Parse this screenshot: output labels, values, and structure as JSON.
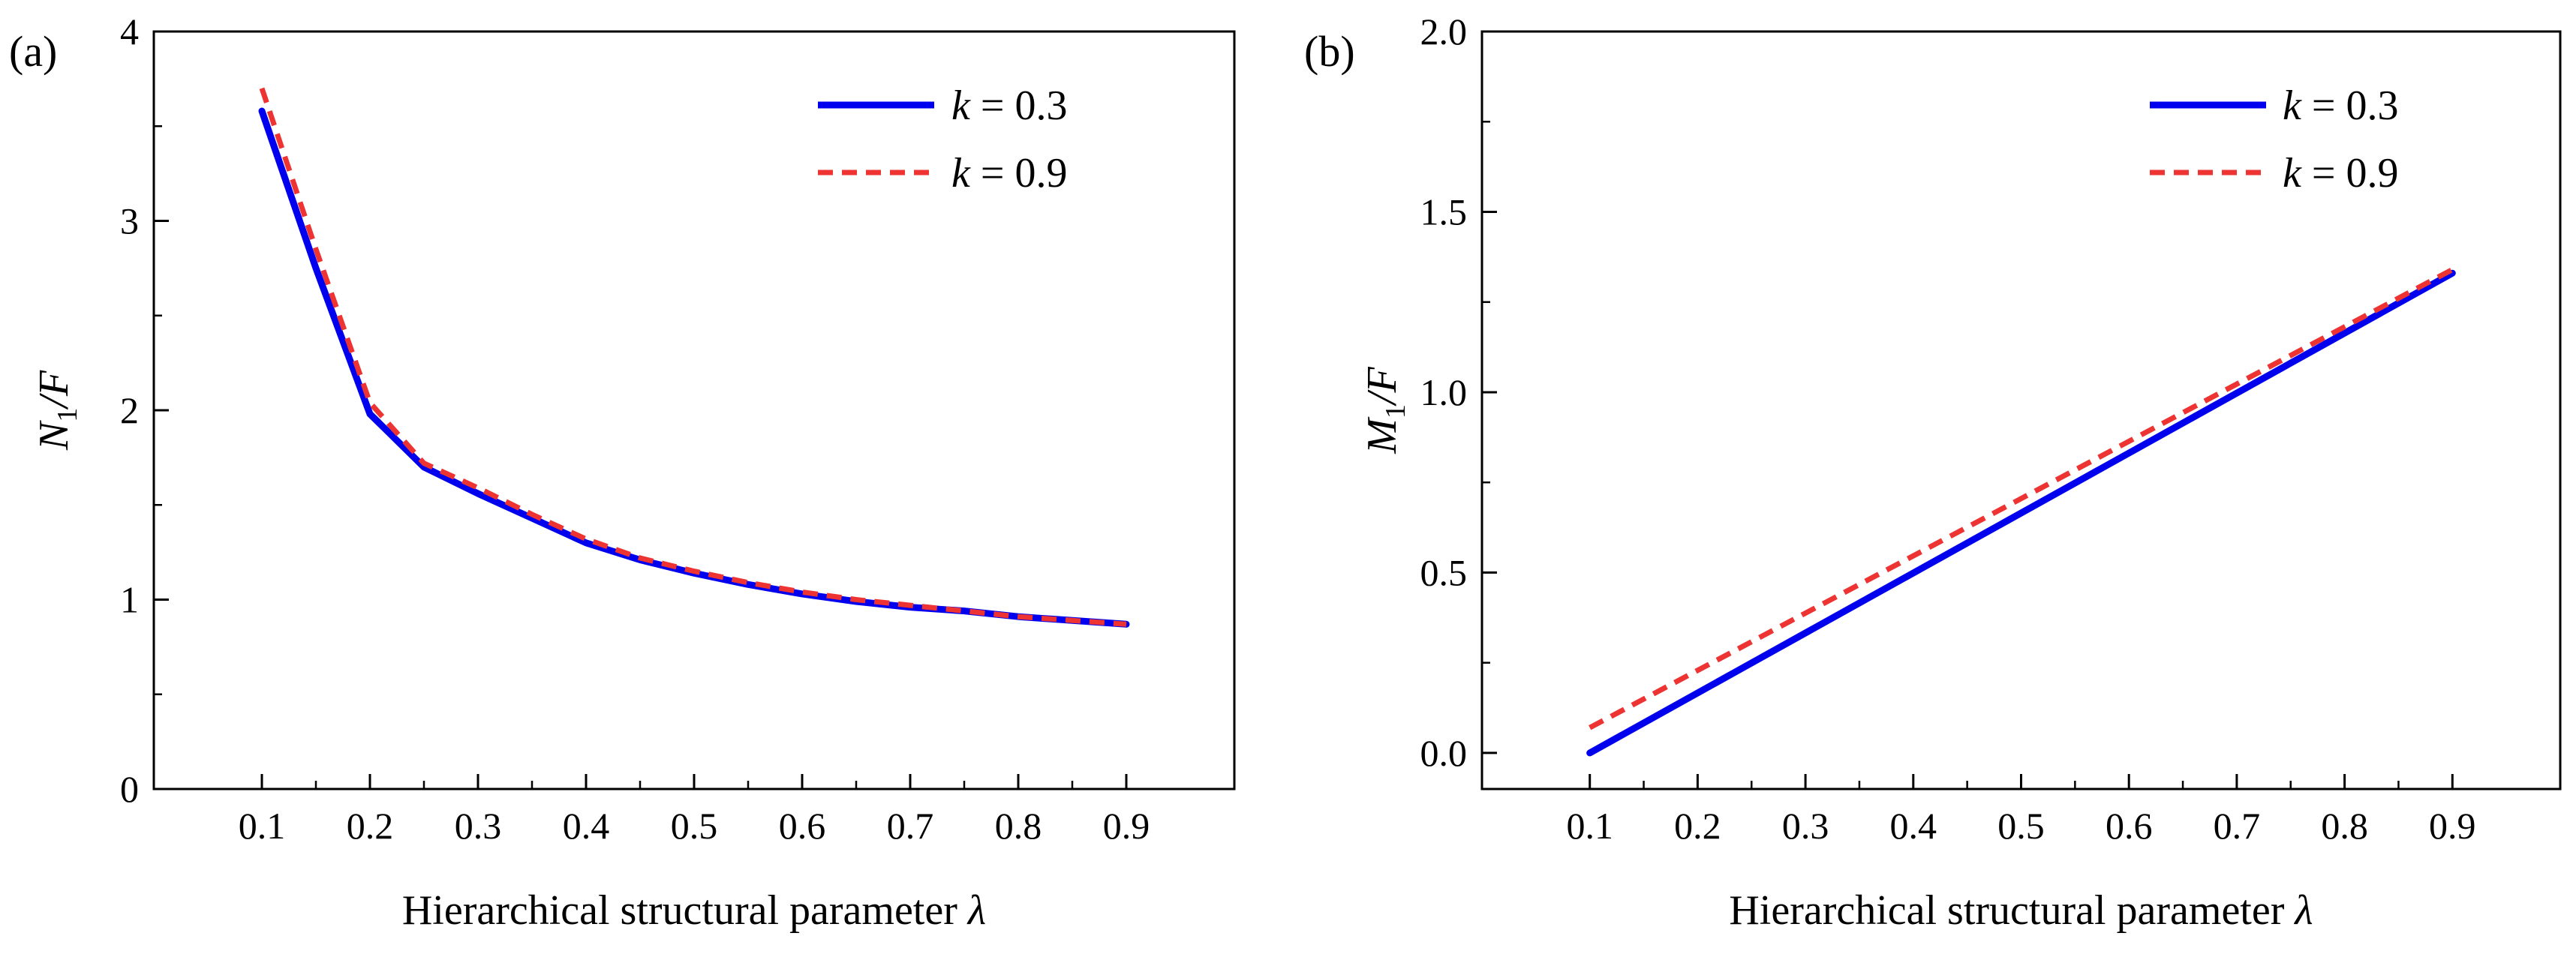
{
  "chart_data": [
    {
      "type": "line",
      "panel_label": "(a)",
      "xlabel_main": "Hierarchical structural parameter ",
      "xlabel_symbol": "λ",
      "ylabel_var": "N",
      "ylabel_sub": "1",
      "ylabel_rest": "/F",
      "xlim": [
        0.0,
        1.0
      ],
      "ylim": [
        0,
        4
      ],
      "xticks": [
        0.1,
        0.2,
        0.3,
        0.4,
        0.5,
        0.6,
        0.7,
        0.8,
        0.9
      ],
      "xtick_labels": [
        "0.1",
        "0.2",
        "0.3",
        "0.4",
        "0.5",
        "0.6",
        "0.7",
        "0.8",
        "0.9"
      ],
      "yticks": [
        0,
        1,
        2,
        3,
        4
      ],
      "ytick_labels": [
        "0",
        "1",
        "2",
        "3",
        "4"
      ],
      "legend_position": "top-right",
      "series": [
        {
          "name_var": "k",
          "name_rest": " = 0.3",
          "color": "#0000ee",
          "style": "solid",
          "x": [
            0.1,
            0.15,
            0.2,
            0.25,
            0.3,
            0.35,
            0.4,
            0.45,
            0.5,
            0.55,
            0.6,
            0.65,
            0.7,
            0.75,
            0.8,
            0.85,
            0.9
          ],
          "y": [
            3.58,
            2.75,
            1.98,
            1.7,
            1.56,
            1.43,
            1.3,
            1.21,
            1.14,
            1.08,
            1.03,
            0.99,
            0.96,
            0.94,
            0.91,
            0.89,
            0.87
          ]
        },
        {
          "name_var": "k",
          "name_rest": " = 0.9",
          "color": "#ee3333",
          "style": "dashed",
          "x": [
            0.1,
            0.15,
            0.2,
            0.25,
            0.3,
            0.35,
            0.4,
            0.45,
            0.5,
            0.55,
            0.6,
            0.65,
            0.7,
            0.75,
            0.8,
            0.85,
            0.9
          ],
          "y": [
            3.7,
            2.85,
            2.04,
            1.72,
            1.59,
            1.45,
            1.32,
            1.22,
            1.15,
            1.09,
            1.04,
            1.0,
            0.97,
            0.94,
            0.91,
            0.89,
            0.87
          ]
        }
      ]
    },
    {
      "type": "line",
      "panel_label": "(b)",
      "xlabel_main": "Hierarchical structural parameter ",
      "xlabel_symbol": "λ",
      "ylabel_var": "M",
      "ylabel_sub": "1",
      "ylabel_rest": "/F",
      "xlim": [
        0.0,
        1.0
      ],
      "ylim": [
        -0.1,
        2.0
      ],
      "xticks": [
        0.1,
        0.2,
        0.3,
        0.4,
        0.5,
        0.6,
        0.7,
        0.8,
        0.9
      ],
      "xtick_labels": [
        "0.1",
        "0.2",
        "0.3",
        "0.4",
        "0.5",
        "0.6",
        "0.7",
        "0.8",
        "0.9"
      ],
      "yticks": [
        0.0,
        0.5,
        1.0,
        1.5,
        2.0
      ],
      "ytick_labels": [
        "0.0",
        "0.5",
        "1.0",
        "1.5",
        "2.0"
      ],
      "legend_position": "top-right",
      "series": [
        {
          "name_var": "k",
          "name_rest": " = 0.3",
          "color": "#0000ee",
          "style": "solid",
          "x": [
            0.1,
            0.9
          ],
          "y": [
            0.0,
            1.33
          ]
        },
        {
          "name_var": "k",
          "name_rest": " = 0.9",
          "color": "#ee3333",
          "style": "dashed",
          "x": [
            0.1,
            0.9
          ],
          "y": [
            0.07,
            1.34
          ]
        }
      ]
    }
  ]
}
